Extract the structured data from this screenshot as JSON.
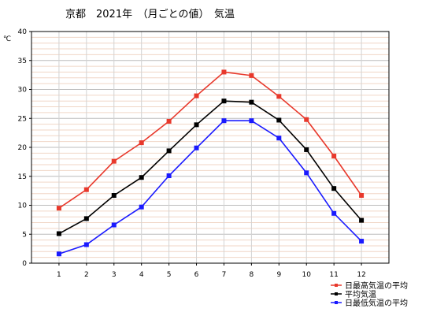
{
  "chart_data": {
    "type": "line",
    "title": "京都　2021年　（月ごとの値）　気温",
    "ylabel": "℃",
    "xlabel": "",
    "categories": [
      "1",
      "2",
      "3",
      "4",
      "5",
      "6",
      "7",
      "8",
      "9",
      "10",
      "11",
      "12"
    ],
    "ylim": [
      0,
      40
    ],
    "yticks": [
      0,
      5,
      10,
      15,
      20,
      25,
      30,
      35,
      40
    ],
    "grid": true,
    "legend_position": "bottom-right",
    "series": [
      {
        "name": "日最高気温の平均",
        "color": "#e8382b",
        "values": [
          9.5,
          12.7,
          17.6,
          20.8,
          24.5,
          28.9,
          33.0,
          32.4,
          28.8,
          24.8,
          18.5,
          11.7
        ]
      },
      {
        "name": "平均気温",
        "color": "#000000",
        "values": [
          5.1,
          7.7,
          11.7,
          14.8,
          19.4,
          23.9,
          28.0,
          27.8,
          24.7,
          19.6,
          12.9,
          7.4
        ]
      },
      {
        "name": "日最低気温の平均",
        "color": "#1a1aff",
        "values": [
          1.6,
          3.2,
          6.6,
          9.7,
          15.1,
          19.9,
          24.6,
          24.6,
          21.6,
          15.6,
          8.6,
          3.8
        ]
      }
    ]
  }
}
